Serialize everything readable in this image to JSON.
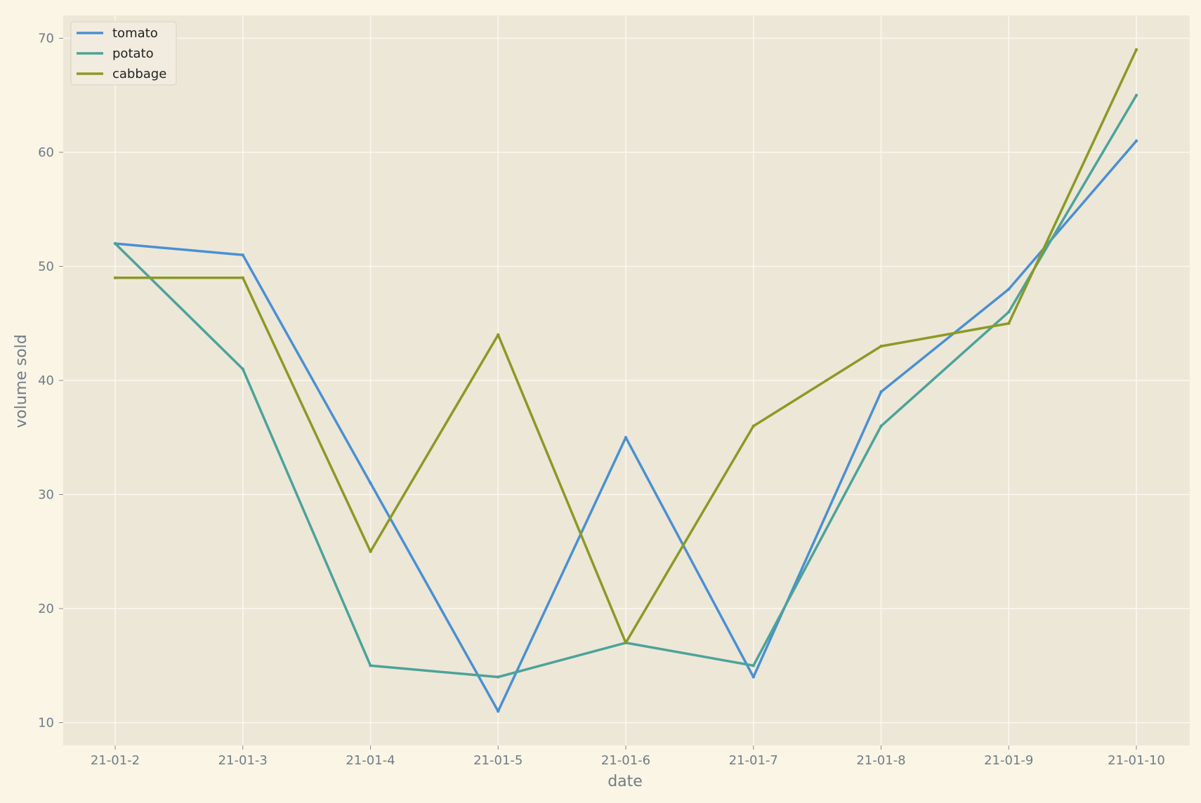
{
  "chart_data": {
    "type": "line",
    "title": "",
    "xlabel": "date",
    "ylabel": "volume sold",
    "categories": [
      "21-01-2",
      "21-01-3",
      "21-01-4",
      "21-01-5",
      "21-01-6",
      "21-01-7",
      "21-01-8",
      "21-01-9",
      "21-01-10"
    ],
    "ylim": [
      8,
      72
    ],
    "yticks": [
      10,
      20,
      30,
      40,
      50,
      60,
      70
    ],
    "grid": true,
    "legend_position": "top-left",
    "series": [
      {
        "name": "tomato",
        "color": "#4a90d2",
        "values": [
          52,
          51,
          31,
          11,
          35,
          14,
          39,
          48,
          61
        ]
      },
      {
        "name": "potato",
        "color": "#4ca39a",
        "values": [
          52,
          41,
          15,
          14,
          17,
          15,
          36,
          46,
          65
        ]
      },
      {
        "name": "cabbage",
        "color": "#8a9a25",
        "values": [
          49,
          49,
          25,
          44,
          17,
          36,
          43,
          45,
          69
        ]
      }
    ],
    "colors": {
      "figure_background": "#fbf5e6",
      "plot_background": "#ede7d8",
      "grid": "#fbf8ef",
      "text": "#6f7d86"
    }
  }
}
